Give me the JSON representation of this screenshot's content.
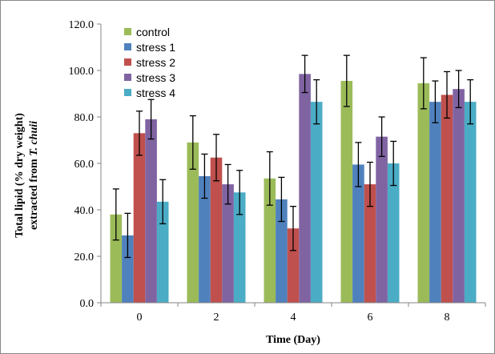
{
  "chart_data": {
    "type": "bar",
    "title": "",
    "xlabel": "Time (Day)",
    "ylabel_plain": "Total lipid (% dry weight)",
    "ylabel_line2_prefix": "extracted from ",
    "ylabel_species": "T. chuii",
    "ylim": [
      0,
      120
    ],
    "yticks": [
      "0.0",
      "20.0",
      "40.0",
      "60.0",
      "80.0",
      "100.0",
      "120.0"
    ],
    "ytick_values": [
      0,
      20,
      40,
      60,
      80,
      100,
      120
    ],
    "categories": [
      "0",
      "2",
      "4",
      "6",
      "8"
    ],
    "grid": false,
    "legend_position": "top-left",
    "series": [
      {
        "name": "control",
        "color": "#9BBB59",
        "values": [
          38,
          69,
          53.5,
          95.5,
          94.5
        ],
        "errors": [
          11,
          11.5,
          11.5,
          11,
          11
        ]
      },
      {
        "name": "stress 1",
        "color": "#4F81BD",
        "values": [
          29,
          54.5,
          44.5,
          59.5,
          86.5
        ],
        "errors": [
          9.5,
          9.5,
          9.5,
          9.5,
          9
        ]
      },
      {
        "name": "stress 2",
        "color": "#C0504D",
        "values": [
          73,
          62.5,
          32,
          51,
          89.5
        ],
        "errors": [
          9.5,
          10,
          9.5,
          9.5,
          10
        ]
      },
      {
        "name": "stress 3",
        "color": "#8064A2",
        "values": [
          79,
          51,
          98.5,
          71.5,
          92
        ],
        "errors": [
          8.5,
          8.5,
          8,
          8.5,
          8
        ]
      },
      {
        "name": "stress 4",
        "color": "#4BACC6",
        "values": [
          43.5,
          47.5,
          86.5,
          60,
          86.5
        ],
        "errors": [
          9.5,
          9.5,
          9.5,
          9.5,
          9.5
        ]
      }
    ]
  }
}
